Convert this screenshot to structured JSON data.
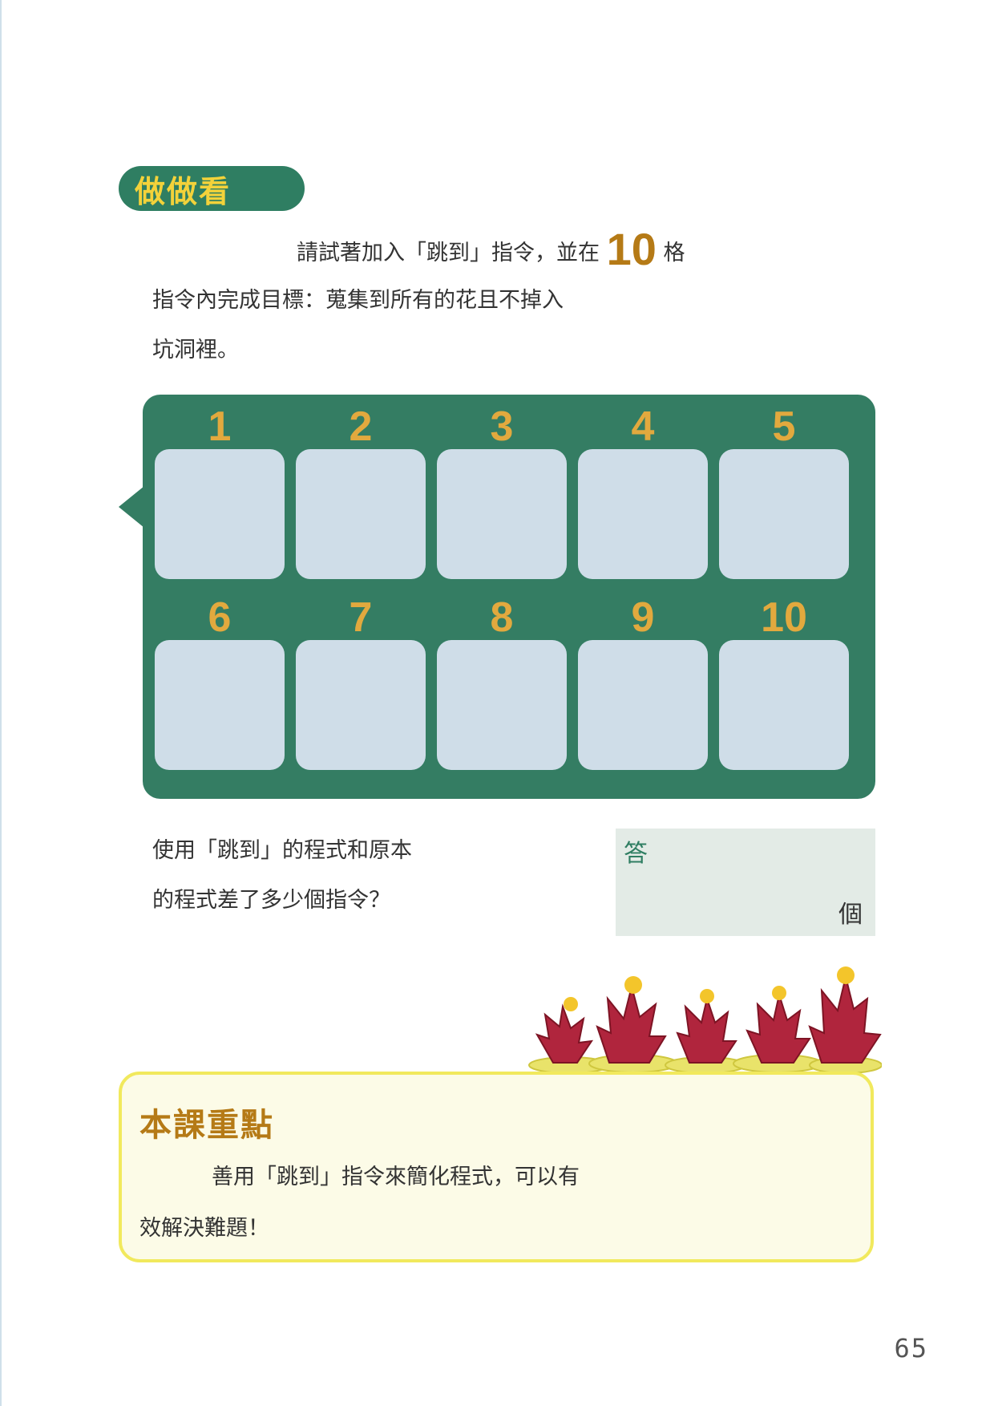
{
  "section_title": "做做看",
  "instruction": {
    "line1_before": "請試著加入「跳到」指令，並在",
    "highlight_number": "10",
    "line1_after": "格",
    "line2": "指令內完成目標：蒐集到所有的花且不掉入",
    "line3": "坑洞裡。"
  },
  "grid": {
    "cells": [
      {
        "label": "1"
      },
      {
        "label": "2"
      },
      {
        "label": "3"
      },
      {
        "label": "4"
      },
      {
        "label": "5"
      },
      {
        "label": "6"
      },
      {
        "label": "7"
      },
      {
        "label": "8"
      },
      {
        "label": "9"
      },
      {
        "label": "10"
      }
    ]
  },
  "question": {
    "line1": "使用「跳到」的程式和原本",
    "line2": "的程式差了多少個指令？"
  },
  "answer": {
    "label": "答",
    "unit": "個"
  },
  "key_point": {
    "title": "本課重點",
    "line1": "善用「跳到」指令來簡化程式，可以有",
    "line2": "效解決難題！"
  },
  "page_number": "65",
  "colors": {
    "green": "#347d63",
    "gold": "#e2a93e",
    "cell": "#cfdde8",
    "yellow_border": "#f1e95d"
  }
}
